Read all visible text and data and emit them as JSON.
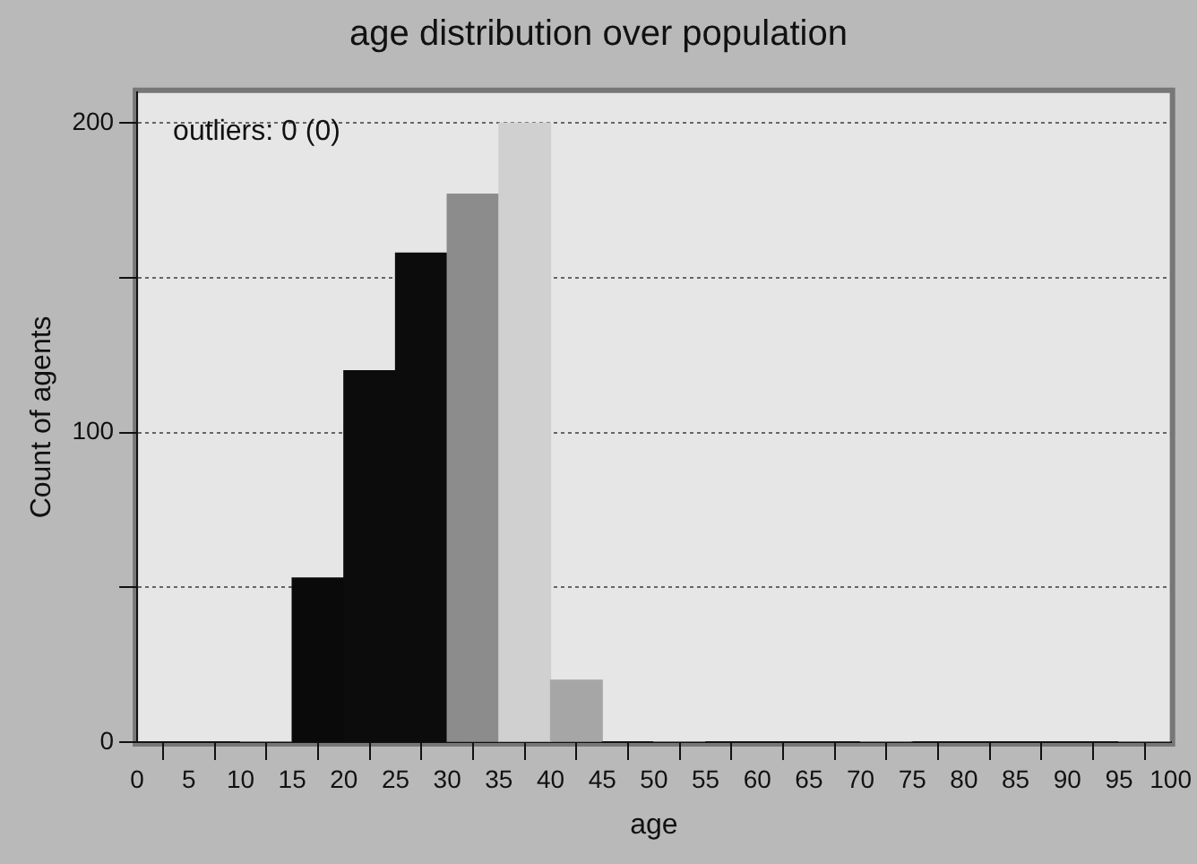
{
  "chart_data": {
    "type": "histogram",
    "title": "age distribution over population",
    "xlabel": "age",
    "ylabel": "Count of agents",
    "bins": [
      0,
      5,
      10,
      15,
      20,
      25,
      30,
      35,
      40,
      45,
      50,
      55,
      60,
      65,
      70,
      75,
      80,
      85,
      90,
      95,
      100
    ],
    "values": [
      0,
      0,
      0,
      53,
      120,
      158,
      177,
      200,
      20,
      0,
      0,
      0,
      0,
      0,
      0,
      0,
      0,
      0,
      0,
      0
    ],
    "colors": [
      "#1a1a1a",
      "#1a1a1a",
      "#9a9a9a",
      "#0a0a0a",
      "#0c0c0c",
      "#0c0c0c",
      "#8c8c8c",
      "#d0d0d0",
      "#a6a6a6",
      "#1a1a1a",
      "#9a9a9a",
      "#1a1a1a",
      "#1a1a1a",
      "#1a1a1a",
      "#9a9a9a",
      "#1a1a1a",
      "#1a1a1a",
      "#1a1a1a",
      "#1a1a1a",
      "#9a9a9a"
    ],
    "xlim": [
      0,
      100
    ],
    "xticks": [
      0,
      5,
      10,
      15,
      20,
      25,
      30,
      35,
      40,
      45,
      50,
      55,
      60,
      65,
      70,
      75,
      80,
      85,
      90,
      95,
      100
    ],
    "ylim": [
      0,
      210
    ],
    "yticks": [
      0,
      {
        "value": 50,
        "label": null
      },
      100,
      {
        "value": 150,
        "label": null
      },
      200
    ],
    "annotations": [
      "outliers: 0 (0)"
    ],
    "grid": "y",
    "legend": false
  }
}
